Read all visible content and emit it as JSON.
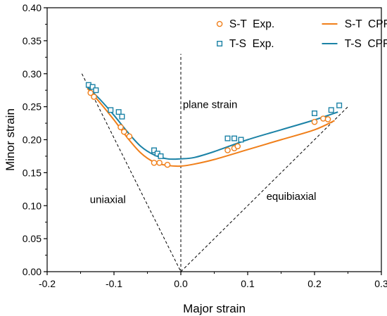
{
  "chart_data": {
    "type": "scatter",
    "xlabel": "Major strain",
    "ylabel": "Minor strain",
    "xlim": [
      -0.2,
      0.3
    ],
    "ylim": [
      0.0,
      0.4
    ],
    "xticks": [
      "-0.2",
      "-0.1",
      "0.0",
      "0.1",
      "0.2",
      "0.3"
    ],
    "yticks": [
      "0.00",
      "0.05",
      "0.10",
      "0.15",
      "0.20",
      "0.25",
      "0.30",
      "0.35",
      "0.40"
    ],
    "grid": false,
    "legend_position": "top-right",
    "colors": {
      "st": "#F07F1A",
      "ts": "#1B82A6"
    },
    "annotations": [
      "plane strain",
      "uniaxial",
      "equibiaxial"
    ],
    "series": [
      {
        "name": "S-T  Exp.",
        "kind": "scatter",
        "marker": "circle",
        "points": [
          [
            -0.135,
            0.271
          ],
          [
            -0.13,
            0.265
          ],
          [
            -0.09,
            0.219
          ],
          [
            -0.085,
            0.212
          ],
          [
            -0.077,
            0.205
          ],
          [
            -0.04,
            0.165
          ],
          [
            -0.032,
            0.165
          ],
          [
            -0.02,
            0.162
          ],
          [
            0.07,
            0.184
          ],
          [
            0.08,
            0.187
          ],
          [
            0.085,
            0.19
          ],
          [
            0.2,
            0.227
          ],
          [
            0.213,
            0.232
          ],
          [
            0.22,
            0.231
          ]
        ]
      },
      {
        "name": "T-S  Exp.",
        "kind": "scatter",
        "marker": "square",
        "points": [
          [
            -0.138,
            0.283
          ],
          [
            -0.132,
            0.28
          ],
          [
            -0.127,
            0.275
          ],
          [
            -0.105,
            0.245
          ],
          [
            -0.093,
            0.242
          ],
          [
            -0.088,
            0.235
          ],
          [
            -0.04,
            0.184
          ],
          [
            -0.035,
            0.179
          ],
          [
            -0.03,
            0.175
          ],
          [
            0.07,
            0.202
          ],
          [
            0.08,
            0.202
          ],
          [
            0.09,
            0.2
          ],
          [
            0.2,
            0.24
          ],
          [
            0.225,
            0.245
          ],
          [
            0.237,
            0.252
          ]
        ]
      },
      {
        "name": "S-T  CPFE-MK",
        "kind": "line",
        "points": [
          [
            -0.14,
            0.278
          ],
          [
            -0.12,
            0.255
          ],
          [
            -0.1,
            0.23
          ],
          [
            -0.08,
            0.203
          ],
          [
            -0.06,
            0.18
          ],
          [
            -0.04,
            0.166
          ],
          [
            -0.02,
            0.161
          ],
          [
            0.0,
            0.16
          ],
          [
            0.02,
            0.163
          ],
          [
            0.05,
            0.17
          ],
          [
            0.1,
            0.185
          ],
          [
            0.15,
            0.2
          ],
          [
            0.2,
            0.215
          ],
          [
            0.23,
            0.229
          ]
        ]
      },
      {
        "name": "T-S  CPFE-MK",
        "kind": "line",
        "points": [
          [
            -0.14,
            0.28
          ],
          [
            -0.12,
            0.26
          ],
          [
            -0.1,
            0.237
          ],
          [
            -0.08,
            0.212
          ],
          [
            -0.06,
            0.19
          ],
          [
            -0.04,
            0.177
          ],
          [
            -0.02,
            0.171
          ],
          [
            0.0,
            0.171
          ],
          [
            0.02,
            0.173
          ],
          [
            0.05,
            0.182
          ],
          [
            0.1,
            0.2
          ],
          [
            0.15,
            0.215
          ],
          [
            0.2,
            0.23
          ],
          [
            0.235,
            0.242
          ]
        ]
      }
    ],
    "reference_lines": [
      {
        "kind": "dashed",
        "points": [
          [
            -0.148,
            0.3
          ],
          [
            0.0,
            0.0
          ]
        ]
      },
      {
        "kind": "dashed",
        "points": [
          [
            0.0,
            0.0
          ],
          [
            0.25,
            0.25
          ]
        ]
      },
      {
        "kind": "dashed",
        "points": [
          [
            0.0,
            0.0
          ],
          [
            0.0,
            0.33
          ]
        ]
      }
    ]
  }
}
